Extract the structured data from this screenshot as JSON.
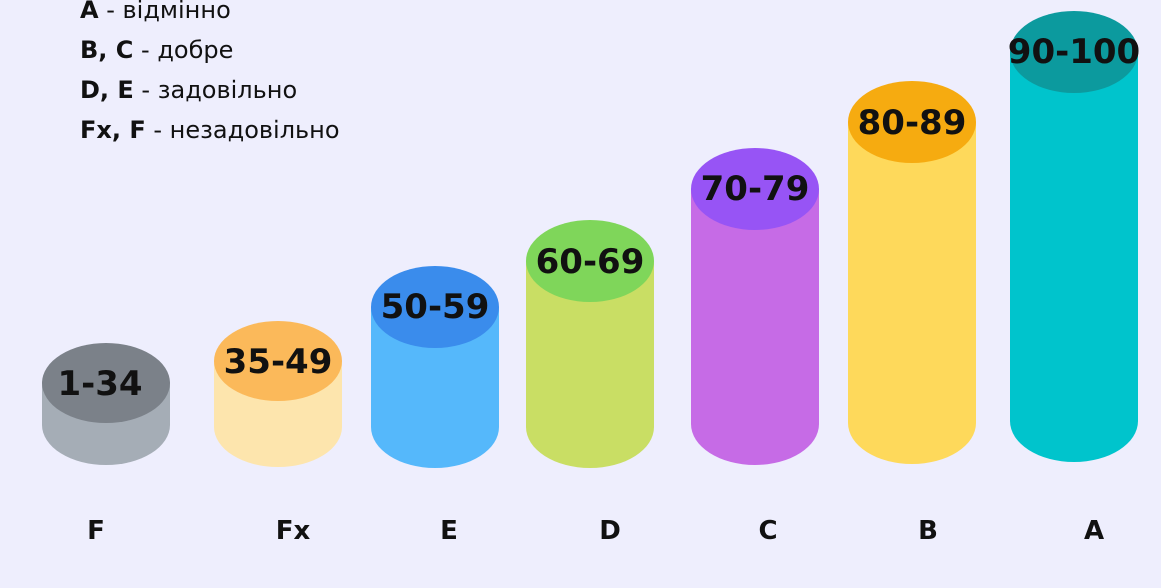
{
  "legend": [
    {
      "grades": "A",
      "separator": " - ",
      "meaning": "відмінно"
    },
    {
      "grades": "B, C",
      "separator": " - ",
      "meaning": "добре"
    },
    {
      "grades": "D, E",
      "separator": " - ",
      "meaning": "задовільно"
    },
    {
      "grades": "Fx, F",
      "separator": " - ",
      "meaning": "незадовільно"
    }
  ],
  "cylinders": [
    {
      "grade": "F",
      "range": "1-34",
      "top_color": "#7b8189",
      "body_color": "#a5adb6"
    },
    {
      "grade": "Fx",
      "range": "35-49",
      "top_color": "#fbb95a",
      "body_color": "#fde5ad"
    },
    {
      "grade": "E",
      "range": "50-59",
      "top_color": "#3a8cec",
      "body_color": "#55b8fb"
    },
    {
      "grade": "D",
      "range": "60-69",
      "top_color": "#7fd65a",
      "body_color": "#c9de64"
    },
    {
      "grade": "C",
      "range": "70-79",
      "top_color": "#9754f5",
      "body_color": "#c66be6"
    },
    {
      "grade": "B",
      "range": "80-89",
      "top_color": "#f6ab10",
      "body_color": "#fed95b"
    },
    {
      "grade": "A",
      "range": "90-100",
      "top_color": "#0c9a9e",
      "body_color": "#00c4cc"
    }
  ]
}
